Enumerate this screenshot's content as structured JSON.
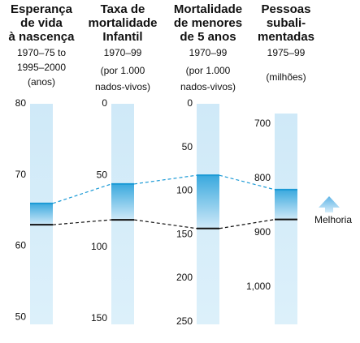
{
  "chart_data": {
    "type": "parallel",
    "colors": [
      "#111111",
      "#1b9ad6"
    ],
    "annotation": "Melhoria",
    "axes": [
      {
        "title": [
          "Esperança",
          "de vida",
          "à nascença"
        ],
        "subtitle": [
          "1970–75 to",
          "1995–2000",
          "(anos)"
        ],
        "ylim": [
          80,
          49
        ],
        "yticks": [
          80,
          70,
          60,
          50
        ],
        "values": [
          63,
          66
        ]
      },
      {
        "title": [
          "Taxa de",
          "mortalidade",
          "Infantil"
        ],
        "subtitle": [
          "1970–99",
          "(por 1.000",
          "nados-vivos)"
        ],
        "ylim": [
          0,
          154
        ],
        "yticks": [
          0,
          50,
          100,
          150
        ],
        "values": [
          81,
          56
        ]
      },
      {
        "title": [
          "Mortalidade",
          "de menores",
          "de 5 anos"
        ],
        "subtitle": [
          "1970–99",
          "(por 1.000",
          "nados-vivos)"
        ],
        "ylim": [
          0,
          253
        ],
        "yticks": [
          0,
          50,
          100,
          150,
          200,
          250
        ],
        "values": [
          143,
          82
        ]
      },
      {
        "title": [
          "Pessoas",
          "subali-",
          "mentadas"
        ],
        "subtitle": [
          "1975–99",
          "(milhões)"
        ],
        "ylim": [
          681,
          1069
        ],
        "yticks": [
          700,
          800,
          900,
          {
            "value": 1000,
            "label": "1,000"
          }
        ],
        "values": [
          876,
          821
        ]
      }
    ]
  }
}
